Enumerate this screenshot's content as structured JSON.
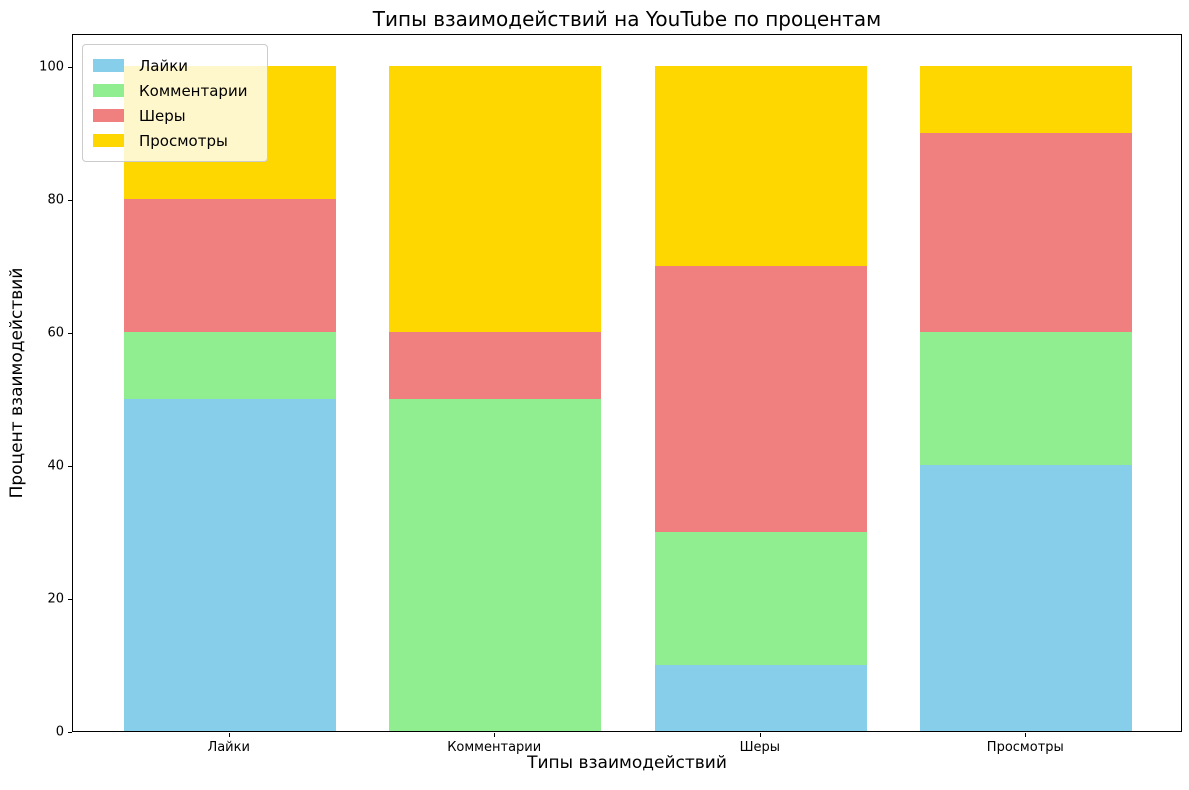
{
  "chart_data": {
    "type": "bar",
    "stacked": true,
    "title": "Типы взаимодействий на YouTube по процентам",
    "xlabel": "Типы взаимодействий",
    "ylabel": "Процент взаимодействий",
    "categories": [
      "Лайки",
      "Комментарии",
      "Шеры",
      "Просмотры"
    ],
    "series": [
      {
        "name": "Лайки",
        "color": "#87CEEB",
        "values": [
          50,
          0,
          10,
          40
        ]
      },
      {
        "name": "Комментарии",
        "color": "#90EE90",
        "values": [
          10,
          50,
          20,
          20
        ]
      },
      {
        "name": "Шеры",
        "color": "#F08080",
        "values": [
          20,
          10,
          40,
          30
        ]
      },
      {
        "name": "Просмотры",
        "color": "#FFD700",
        "values": [
          20,
          40,
          30,
          10
        ]
      }
    ],
    "stack_totals": [
      100,
      100,
      100,
      100
    ],
    "yticks": [
      0,
      20,
      40,
      60,
      80,
      100
    ],
    "ylim": [
      0,
      105
    ],
    "grid": false,
    "legend_position": "upper left",
    "legend_background": "rgba(255,255,255,0.8)",
    "legend_border_color": "#cccccc",
    "axis_color": "#000000",
    "background_color": "#ffffff"
  }
}
